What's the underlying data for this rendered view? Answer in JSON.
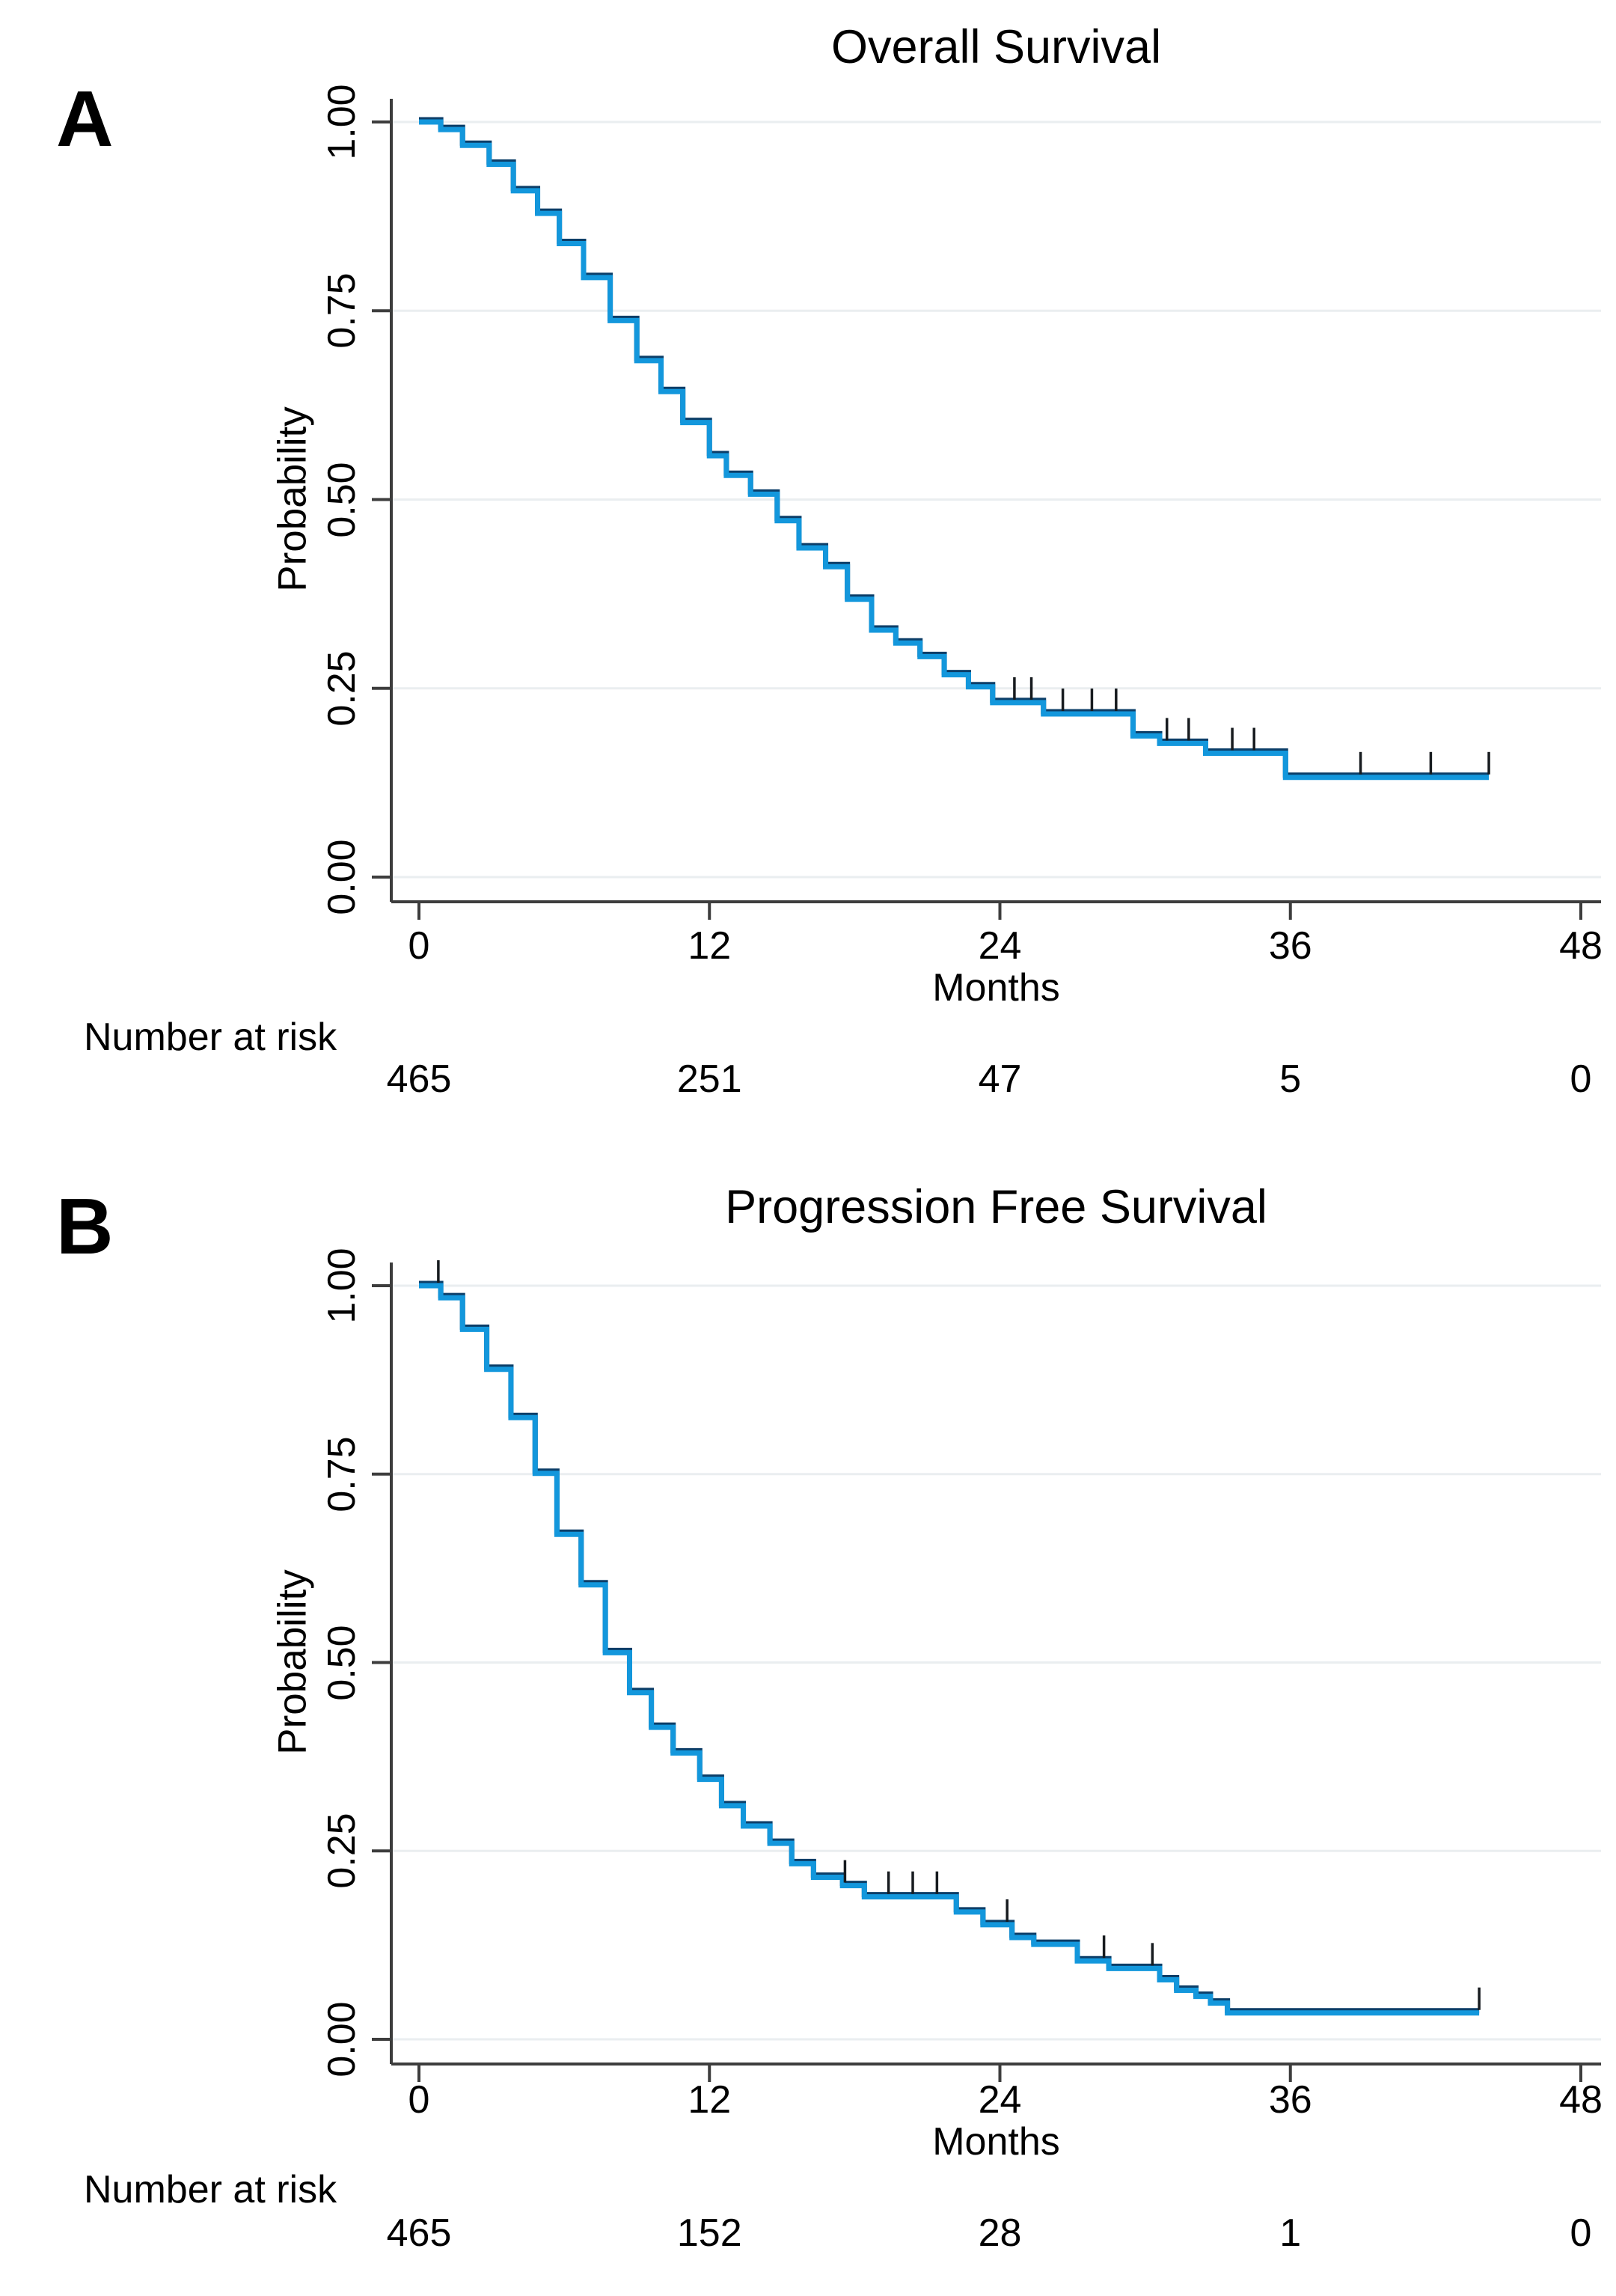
{
  "figure": {
    "background": "#ffffff",
    "panels": [
      {
        "label": "A",
        "title": "Overall Survival",
        "x_axis_label": "Months",
        "y_axis_label": "Probability",
        "risk_label": "Number at risk"
      },
      {
        "label": "B",
        "title": "Progression Free Survival",
        "x_axis_label": "Months",
        "y_axis_label": "Probability",
        "risk_label": "Number at risk"
      }
    ],
    "colors": {
      "curve": "#1397dc",
      "curve_edge": "#0c3e68",
      "grid": "#eaeef0",
      "axis": "#3d3d3d",
      "censor": "#171b1f",
      "text": "#000000"
    }
  },
  "chart_data": [
    {
      "type": "line",
      "subtype": "kaplan_meier_step",
      "title": "Overall Survival",
      "xlabel": "Months",
      "ylabel": "Probability",
      "xlim": [
        0,
        48
      ],
      "ylim": [
        0,
        1
      ],
      "x_ticks": [
        0,
        12,
        24,
        36,
        48
      ],
      "y_tick_values": [
        0,
        0.25,
        0.5,
        0.75,
        1
      ],
      "y_tick_labels": [
        "0.00",
        "0.25",
        "0.50",
        "0.75",
        "1.00"
      ],
      "grid": "horizontal",
      "legend": "none",
      "steps": [
        [
          0,
          1.0
        ],
        [
          0.9,
          0.99
        ],
        [
          1.8,
          0.969
        ],
        [
          2.9,
          0.944
        ],
        [
          3.9,
          0.909
        ],
        [
          4.9,
          0.879
        ],
        [
          5.8,
          0.839
        ],
        [
          6.8,
          0.794
        ],
        [
          7.9,
          0.737
        ],
        [
          9.0,
          0.684
        ],
        [
          10.0,
          0.643
        ],
        [
          10.9,
          0.602
        ],
        [
          12.0,
          0.558
        ],
        [
          12.7,
          0.532
        ],
        [
          13.7,
          0.507
        ],
        [
          14.8,
          0.472
        ],
        [
          15.7,
          0.436
        ],
        [
          16.8,
          0.411
        ],
        [
          17.7,
          0.368
        ],
        [
          18.7,
          0.327
        ],
        [
          19.7,
          0.31
        ],
        [
          20.7,
          0.292
        ],
        [
          21.7,
          0.268
        ],
        [
          22.7,
          0.252
        ],
        [
          23.7,
          0.231
        ],
        [
          25.8,
          0.216
        ],
        [
          29.5,
          0.187
        ],
        [
          30.6,
          0.177
        ],
        [
          32.5,
          0.164
        ],
        [
          35.8,
          0.132
        ]
      ],
      "end_time": 44.2,
      "censor_times": [
        24.6,
        25.3,
        26.6,
        27.8,
        28.8,
        30.9,
        31.8,
        33.6,
        34.5,
        38.9,
        41.8,
        44.2
      ],
      "number_at_risk": {
        "label": "Number at risk",
        "times": [
          0,
          12,
          24,
          36,
          48
        ],
        "values": [
          "465",
          "251",
          "47",
          "5",
          "0"
        ]
      }
    },
    {
      "type": "line",
      "subtype": "kaplan_meier_step",
      "title": "Progression Free Survival",
      "xlabel": "Months",
      "ylabel": "Probability",
      "xlim": [
        0,
        48
      ],
      "ylim": [
        0,
        1
      ],
      "x_ticks": [
        0,
        12,
        24,
        36,
        48
      ],
      "y_tick_values": [
        0,
        0.25,
        0.5,
        0.75,
        1
      ],
      "y_tick_labels": [
        "0.00",
        "0.25",
        "0.50",
        "0.75",
        "1.00"
      ],
      "grid": "horizontal",
      "legend": "none",
      "steps": [
        [
          0,
          1.0
        ],
        [
          0.9,
          0.984
        ],
        [
          1.8,
          0.942
        ],
        [
          2.8,
          0.889
        ],
        [
          3.8,
          0.825
        ],
        [
          4.8,
          0.751
        ],
        [
          5.7,
          0.67
        ],
        [
          6.7,
          0.603
        ],
        [
          7.7,
          0.513
        ],
        [
          8.7,
          0.46
        ],
        [
          9.6,
          0.414
        ],
        [
          10.5,
          0.38
        ],
        [
          11.6,
          0.345
        ],
        [
          12.5,
          0.31
        ],
        [
          13.4,
          0.283
        ],
        [
          14.5,
          0.26
        ],
        [
          15.4,
          0.233
        ],
        [
          16.3,
          0.215
        ],
        [
          17.5,
          0.204
        ],
        [
          18.4,
          0.189
        ],
        [
          22.2,
          0.169
        ],
        [
          23.3,
          0.152
        ],
        [
          24.5,
          0.135
        ],
        [
          25.4,
          0.126
        ],
        [
          27.2,
          0.104
        ],
        [
          28.5,
          0.094
        ],
        [
          30.6,
          0.079
        ],
        [
          31.3,
          0.065
        ],
        [
          32.1,
          0.057
        ],
        [
          32.7,
          0.048
        ],
        [
          33.4,
          0.035
        ]
      ],
      "end_time": 43.8,
      "censor_times": [
        0.8,
        17.6,
        19.4,
        20.4,
        21.4,
        24.3,
        28.3,
        30.3,
        43.8
      ],
      "number_at_risk": {
        "label": "Number at risk",
        "times": [
          0,
          12,
          24,
          36,
          48
        ],
        "values": [
          "465",
          "152",
          "28",
          "1",
          "0"
        ]
      }
    }
  ]
}
